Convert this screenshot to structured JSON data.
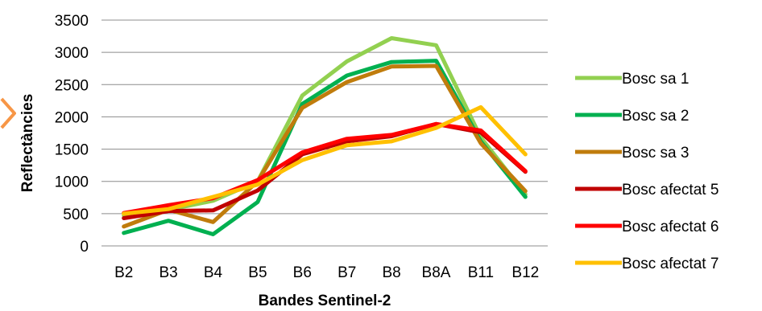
{
  "chart_data": {
    "type": "line",
    "title": "",
    "xlabel": "Bandes Sentinel-2",
    "ylabel": "Reflectàncies",
    "categories": [
      "B2",
      "B3",
      "B4",
      "B5",
      "B6",
      "B7",
      "B8",
      "B8A",
      "B11",
      "B12"
    ],
    "ylim": [
      0,
      3500
    ],
    "yticks": [
      "0",
      "500",
      "1000",
      "1500",
      "2000",
      "2500",
      "3000",
      "3500"
    ],
    "grid": true,
    "legend_position": "right",
    "series": [
      {
        "name": "Bosc sa 1",
        "color": "#92d050",
        "values": [
          470,
          560,
          700,
          1000,
          2330,
          2860,
          3220,
          3110,
          1680,
          800
        ]
      },
      {
        "name": "Bosc sa 2",
        "color": "#00b050",
        "values": [
          200,
          390,
          180,
          680,
          2200,
          2640,
          2850,
          2870,
          1620,
          760
        ]
      },
      {
        "name": "Bosc sa 3",
        "color": "#c07c0c",
        "values": [
          300,
          560,
          370,
          1000,
          2140,
          2540,
          2780,
          2790,
          1590,
          850
        ]
      },
      {
        "name": "Bosc afectat 5",
        "color": "#c00000",
        "values": [
          430,
          540,
          550,
          860,
          1420,
          1620,
          1700,
          1890,
          1760,
          1150
        ]
      },
      {
        "name": "Bosc afectat 6",
        "color": "#ff0000",
        "values": [
          510,
          630,
          740,
          1020,
          1450,
          1660,
          1720,
          1890,
          1790,
          1160
        ]
      },
      {
        "name": "Bosc afectat 7",
        "color": "#ffc000",
        "values": [
          500,
          570,
          760,
          950,
          1330,
          1560,
          1620,
          1830,
          2150,
          1420
        ]
      }
    ]
  }
}
